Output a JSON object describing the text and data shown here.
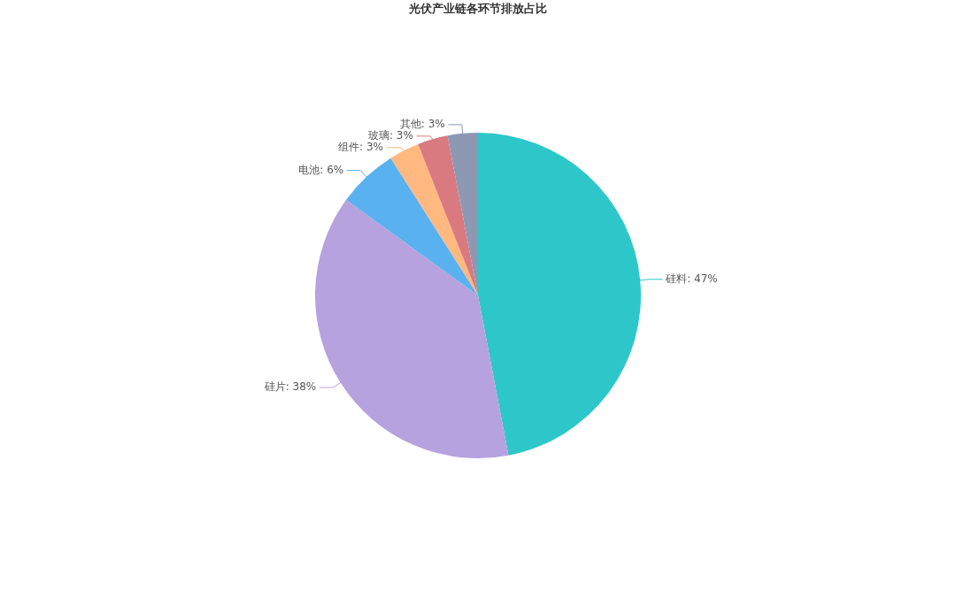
{
  "chart_data": {
    "type": "pie",
    "title": "光伏产业链各环节排放占比",
    "categories": [
      "硅料",
      "硅片",
      "电池",
      "组件",
      "玻璃",
      "其他"
    ],
    "values": [
      47,
      38,
      6,
      3,
      3,
      3
    ],
    "colors": [
      "#2ec7c9",
      "#b6a2de",
      "#5ab1ef",
      "#ffb980",
      "#d87a80",
      "#8d98b3"
    ],
    "value_labels": [
      "47%",
      "38%",
      "6%",
      "3%",
      "3%",
      "3%"
    ]
  }
}
